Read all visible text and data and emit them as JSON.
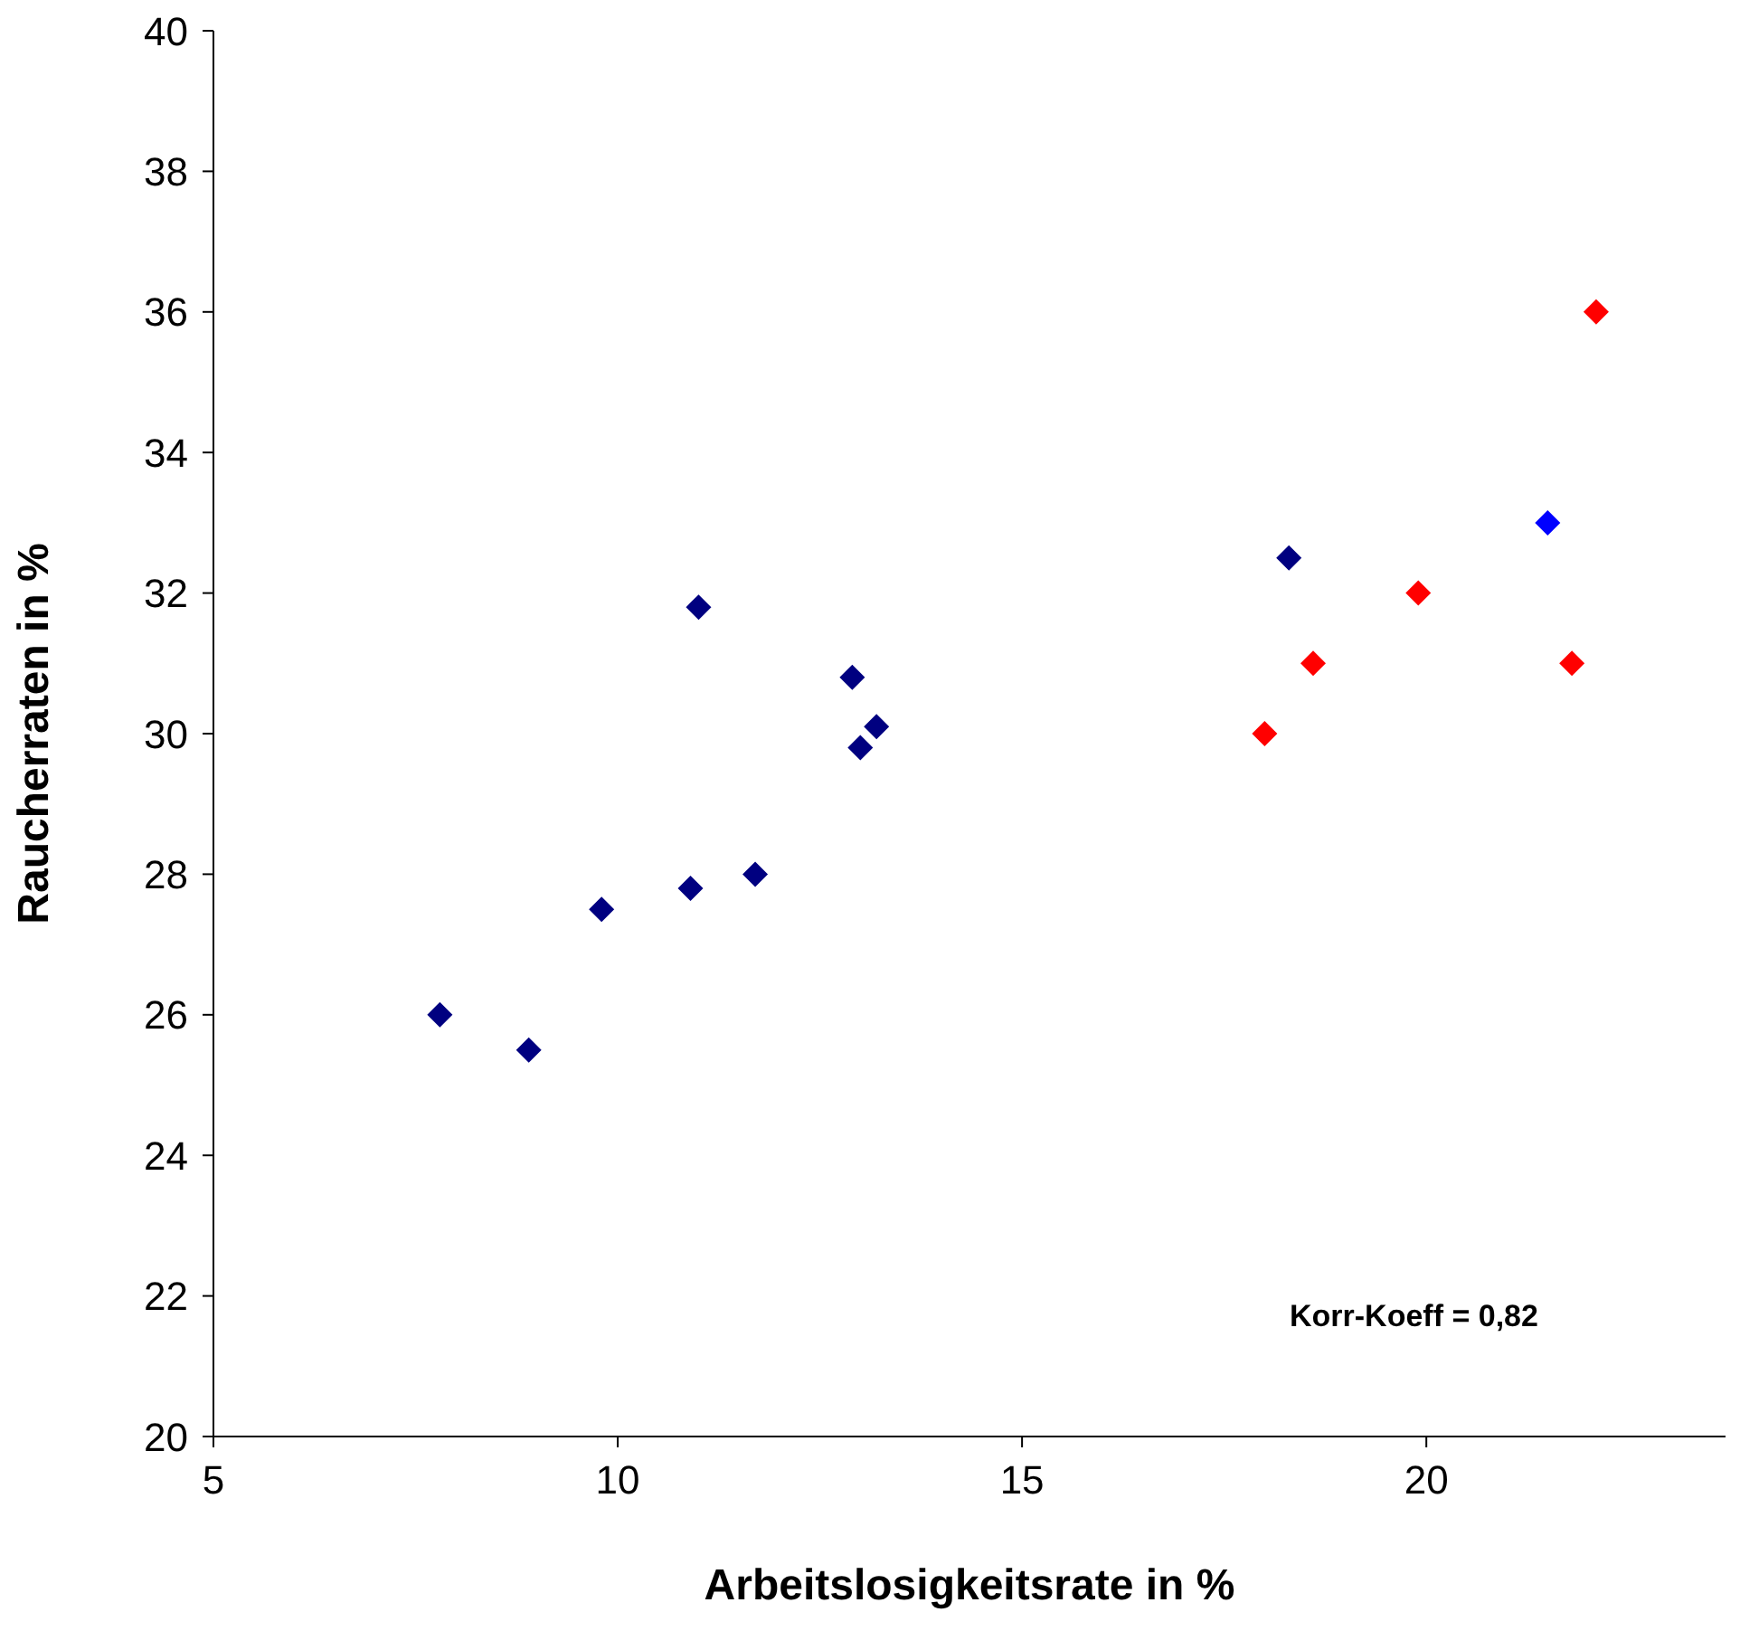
{
  "chart_data": {
    "type": "scatter",
    "xlabel": "Arbeitslosigkeitsrate in %",
    "ylabel": "Raucherraten in %",
    "xlim": [
      5,
      23.7
    ],
    "xticks": [
      5,
      10,
      15,
      20
    ],
    "ylim": [
      20,
      40
    ],
    "yticks": [
      20,
      22,
      24,
      26,
      28,
      30,
      32,
      34,
      36,
      38,
      40
    ],
    "grid": false,
    "legend": false,
    "marker": "diamond",
    "annotations": [
      "Korr-Koeff = 0,82"
    ],
    "series": [
      {
        "color": "#000080",
        "x": [
          7.8,
          8.9,
          9.8,
          11.0,
          10.9,
          11.7,
          12.9,
          13.0,
          13.2,
          18.3
        ],
        "values": [
          26.0,
          25.5,
          27.5,
          31.8,
          27.8,
          28.0,
          30.8,
          29.8,
          30.1,
          32.5
        ]
      },
      {
        "color": "#0000ff",
        "x": [
          21.5
        ],
        "values": [
          33.0
        ]
      },
      {
        "color": "#ff0000",
        "x": [
          18.0,
          18.6,
          19.9,
          21.8,
          22.1
        ],
        "values": [
          30.0,
          31.0,
          32.0,
          31.0,
          36.0
        ]
      }
    ]
  }
}
